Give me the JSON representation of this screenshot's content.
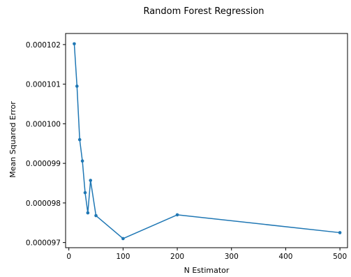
{
  "chart_data": {
    "type": "line",
    "title": "Random Forest Regression",
    "xlabel": "N Estimator",
    "ylabel": "Mean Squared Error",
    "xlim": [
      -6,
      514
    ],
    "ylim": [
      9.687e-05,
      0.00010228
    ],
    "xticks": [
      0,
      100,
      200,
      300,
      400,
      500
    ],
    "xtick_labels": [
      "0",
      "100",
      "200",
      "300",
      "400",
      "500"
    ],
    "yticks": [
      9.7e-05,
      9.8e-05,
      9.9e-05,
      0.0001,
      0.000101,
      0.000102
    ],
    "ytick_labels": [
      "0.000097",
      "0.000098",
      "0.000099",
      "0.000100",
      "0.000101",
      "0.000102"
    ],
    "grid": false,
    "series": [
      {
        "color": "#1f77b4",
        "marker": "circle",
        "x": [
          10,
          15,
          20,
          25,
          30,
          35,
          40,
          50,
          100,
          200,
          500
        ],
        "y": [
          0.00010202,
          0.00010095,
          9.96e-05,
          9.906e-05,
          9.826e-05,
          9.775e-05,
          9.857e-05,
          9.768e-05,
          9.71e-05,
          9.77e-05,
          9.725e-05
        ]
      }
    ]
  }
}
